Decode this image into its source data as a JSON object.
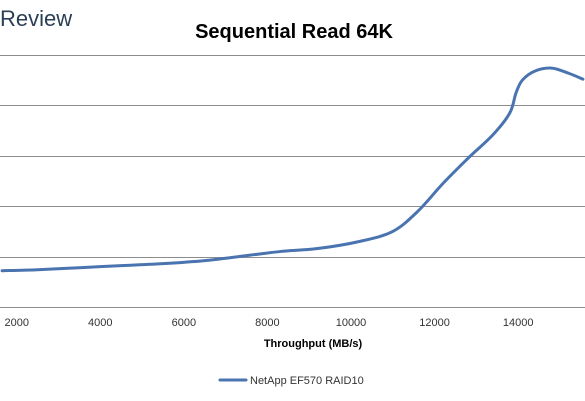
{
  "brand": {
    "text": "Review"
  },
  "chart_data": {
    "type": "line",
    "title": "Sequential Read 64K",
    "xlabel": "Throughput (MB/s)",
    "ylabel": "",
    "xlim": [
      1600,
      15600
    ],
    "ylim": [
      0,
      5
    ],
    "x_ticks": [
      "2000",
      "4000",
      "6000",
      "8000",
      "10000",
      "12000",
      "14000"
    ],
    "y_gridlines": [
      1,
      2,
      3,
      4,
      5
    ],
    "y_tick_labels_visible": false,
    "grid": true,
    "legend": "bottom",
    "series": [
      {
        "name": "NetApp EF570 RAID10",
        "color": "#4a74b0",
        "x": [
          1650,
          2500,
          3500,
          4500,
          5500,
          6500,
          7500,
          8300,
          9200,
          10200,
          11000,
          11600,
          12200,
          12800,
          13400,
          13800,
          13950,
          14100,
          14400,
          14800,
          15200,
          15550
        ],
        "y": [
          0.72,
          0.74,
          0.78,
          0.82,
          0.86,
          0.92,
          1.02,
          1.1,
          1.16,
          1.3,
          1.5,
          1.9,
          2.45,
          2.95,
          3.42,
          3.85,
          4.25,
          4.5,
          4.68,
          4.74,
          4.64,
          4.52
        ]
      }
    ]
  }
}
